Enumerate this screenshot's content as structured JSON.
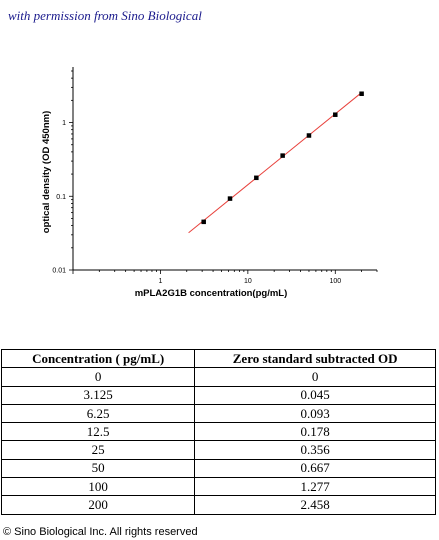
{
  "header": {
    "permission_text": "with permission from Sino Biological"
  },
  "chart_data": {
    "type": "scatter",
    "xlabel": "mPLA2G1B  concentration(pg/mL)",
    "ylabel": "optical density (OD 450nm)",
    "xscale": "log",
    "yscale": "log",
    "xlim": [
      0.1,
      300
    ],
    "ylim": [
      0.01,
      5
    ],
    "xticks": [
      "1",
      "10",
      "100"
    ],
    "yticks": [
      "0.01",
      "0.1",
      "1"
    ],
    "points": [
      {
        "x": 3.125,
        "y": 0.045
      },
      {
        "x": 6.25,
        "y": 0.093
      },
      {
        "x": 12.5,
        "y": 0.178
      },
      {
        "x": 25,
        "y": 0.356
      },
      {
        "x": 50,
        "y": 0.667
      },
      {
        "x": 100,
        "y": 1.277
      },
      {
        "x": 200,
        "y": 2.458
      }
    ],
    "fit_line": {
      "x": [
        2.1,
        200
      ],
      "y": [
        0.032,
        2.55
      ]
    },
    "marker_color": "#000000",
    "line_color": "#e8413c",
    "grid": false
  },
  "table": {
    "headers": [
      "Concentration ( pg/mL)",
      "Zero standard subtracted OD"
    ],
    "rows": [
      [
        "0",
        "0"
      ],
      [
        "3.125",
        "0.045"
      ],
      [
        "6.25",
        "0.093"
      ],
      [
        "12.5",
        "0.178"
      ],
      [
        "25",
        "0.356"
      ],
      [
        "50",
        "0.667"
      ],
      [
        "100",
        "1.277"
      ],
      [
        "200",
        "2.458"
      ]
    ]
  },
  "footer": {
    "copyright": "© Sino Biological Inc. All rights reserved"
  }
}
